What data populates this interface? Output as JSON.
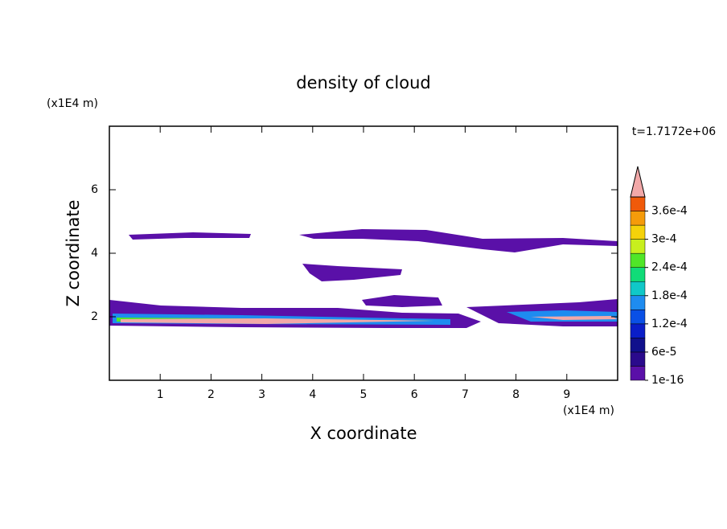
{
  "chart_data": {
    "type": "contour",
    "title": "density of cloud",
    "x_label": "X coordinate",
    "y_label": "Z coordinate",
    "x_unit": "(x1E4 m)",
    "y_unit": "(x1E4 m)",
    "time_label": "t=1.7172e+06",
    "xlim": [
      0,
      10
    ],
    "xticks": [
      1,
      2,
      3,
      4,
      5,
      6,
      7,
      8,
      9
    ],
    "ylim": [
      0,
      8
    ],
    "yticks": [
      2,
      4,
      6
    ],
    "colorbar": {
      "lim": [
        0,
        0.00039
      ],
      "ticks": [
        {
          "value": 1e-16,
          "label": "1e-16"
        },
        {
          "value": 6e-05,
          "label": "6e-5"
        },
        {
          "value": 0.00012,
          "label": "1.2e-4"
        },
        {
          "value": 0.00018,
          "label": "1.8e-4"
        },
        {
          "value": 0.00024,
          "label": "2.4e-4"
        },
        {
          "value": 0.0003,
          "label": "3e-4"
        },
        {
          "value": 0.00036,
          "label": "3.6e-4"
        }
      ],
      "colors": [
        "#5a10a8",
        "#2a0a8c",
        "#10108c",
        "#0a1ec8",
        "#0a50e6",
        "#1e8cf0",
        "#10c8c8",
        "#10dc78",
        "#50e628",
        "#c8ef1e",
        "#f5d20a",
        "#f59b0a",
        "#f05a0a"
      ],
      "overflow_color": "#f2a8a8"
    }
  }
}
